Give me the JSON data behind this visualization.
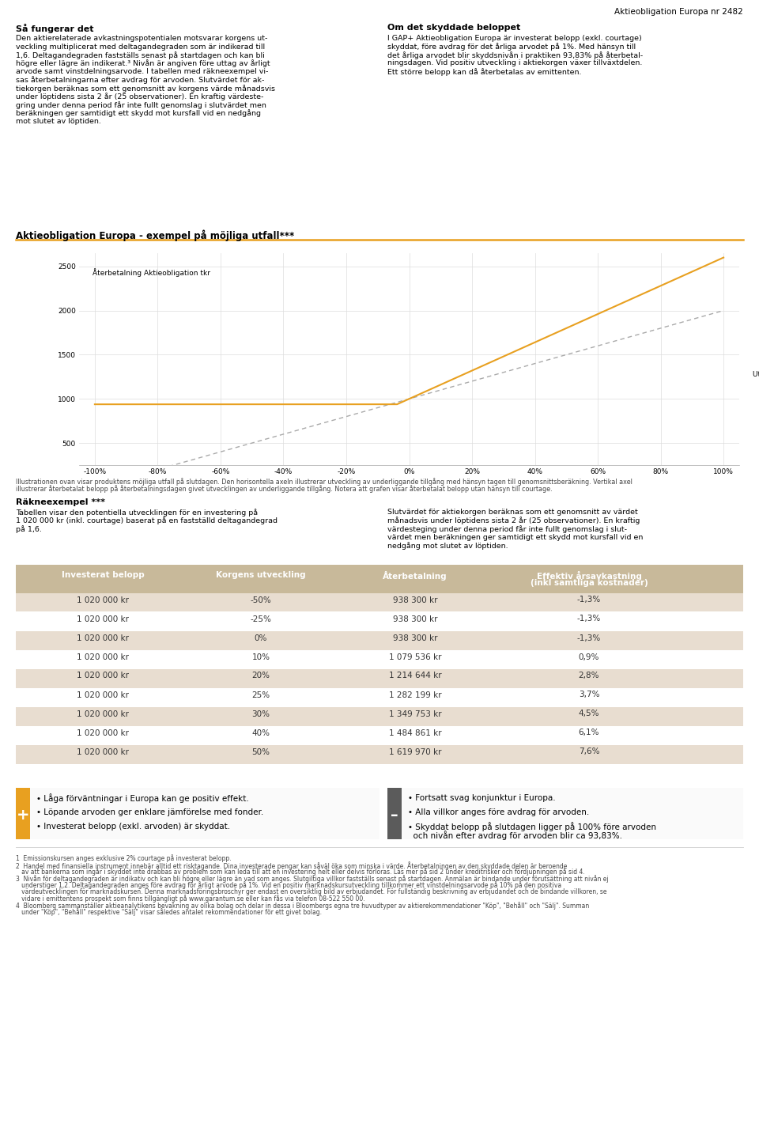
{
  "title_top_right": "Aktieobligation Europa nr 2482",
  "section1_title": "Så fungerar det",
  "section1_text": [
    "Den aktierelaterade avkastningspotentialen motsvarar korgens ut-",
    "veckling multiplicerat med deltagandegraden som är indikerad till",
    "1,6. Deltagandegraden fastställs senast på startdagen och kan bli",
    "högre eller lägre än indikerat.³ Nivån är angiven före uttag av årligt",
    "arvode samt vinstdelningsarvode. I tabellen med räkneexempel vi-",
    "sas återbetalningarna efter avdrag för arvoden. Slutvärdet för ak-",
    "tiekorgen beräknas som ett genomsnitt av korgens värde månadsvis",
    "under löptidens sista 2 år (25 observationer). En kraftig värdeste-",
    "gring under denna period får inte fullt genomslag i slutvärdet men",
    "beräkningen ger samtidigt ett skydd mot kursfall vid en nedgång",
    "mot slutet av löptiden."
  ],
  "section2_title": "Om det skyddade beloppet",
  "section2_text": [
    "I GAP+ Aktieobligation Europa är investerat belopp (exkl. courtage)",
    "skyddat, före avdrag för det årliga arvodet på 1%. Med hänsyn till",
    "det årliga arvodet blir skyddsnivån i praktiken 93,83% på återbetal-",
    "ningsdagen. Vid positiv utveckling i aktiekorgen växer tillväxtdelen.",
    "Ett större belopp kan då återbetalas av emittenten."
  ],
  "chart_title": "Aktieobligation Europa - exempel på möjliga utfall***",
  "chart_ylabel": "Återbetalning Aktieobligation tkr",
  "chart_xlabel_label": "Utveckling underliggande tillgång",
  "chart_yticks": [
    500,
    1000,
    1500,
    2000,
    2500
  ],
  "chart_xticks": [
    -1.0,
    -0.8,
    -0.6,
    -0.4,
    -0.2,
    0.0,
    0.2,
    0.4,
    0.6,
    0.8,
    1.0
  ],
  "chart_xtick_labels": [
    "-100%",
    "-80%",
    "-60%",
    "-40%",
    "-20%",
    "0%",
    "20%",
    "40%",
    "60%",
    "80%",
    "100%"
  ],
  "chart_line_orange_color": "#E8A020",
  "chart_line_dashed_color": "#AAAAAA",
  "chart_bg_color": "#FFFFFF",
  "chart_grid_color": "#DDDDDD",
  "illustration_text1": "Illustrationen ovan visar produktens möjliga utfall på slutdagen. Den horisontella axeln illustrerar utveckling av underliggande tillgång med hänsyn tagen till genomsnittsberäkning. Vertikal axel",
  "illustration_text2": "illustrerar återbetalat belopp på återbetalningsdagen givet utvecklingen av underliggande tillgång. Notera att grafen visar återbetalat belopp utan hänsyn till courtage.",
  "rakneexempel_title": "Räkneexempel ***",
  "rakneexempel_text1": [
    "Tabellen visar den potentiella utvecklingen för en investering på",
    "1 020 000 kr (inkl. courtage) baserat på en fastställd deltagandegrad",
    "på 1,6."
  ],
  "rakneexempel_text2": [
    "Slutvärdet för aktiekorgen beräknas som ett genomsnitt av värdet",
    "månadsvis under löptidens sista 2 år (25 observationer). En kraftig",
    "värdesteging under denna period får inte fullt genomslag i slut-",
    "värdet men beräkningen ger samtidigt ett skydd mot kursfall vid en",
    "nedgång mot slutet av löptiden."
  ],
  "table_header_color": "#C8B99A",
  "table_header_text_color": "#FFFFFF",
  "table_row_color_odd": "#E8DDD0",
  "table_row_color_even": "#FFFFFF",
  "table_headers": [
    "Investerat belopp",
    "Korgens utveckling",
    "Återbetalning",
    "Effektiv årsavkastning\n(inkl samtliga kostnader)"
  ],
  "table_data": [
    [
      "1 020 000 kr",
      "-50%",
      "938 300 kr",
      "-1,3%"
    ],
    [
      "1 020 000 kr",
      "-25%",
      "938 300 kr",
      "-1,3%"
    ],
    [
      "1 020 000 kr",
      "0%",
      "938 300 kr",
      "-1,3%"
    ],
    [
      "1 020 000 kr",
      "10%",
      "1 079 536 kr",
      "0,9%"
    ],
    [
      "1 020 000 kr",
      "20%",
      "1 214 644 kr",
      "2,8%"
    ],
    [
      "1 020 000 kr",
      "25%",
      "1 282 199 kr",
      "3,7%"
    ],
    [
      "1 020 000 kr",
      "30%",
      "1 349 753 kr",
      "4,5%"
    ],
    [
      "1 020 000 kr",
      "40%",
      "1 484 861 kr",
      "6,1%"
    ],
    [
      "1 020 000 kr",
      "50%",
      "1 619 970 kr",
      "7,6%"
    ]
  ],
  "plus_section_color": "#E8A020",
  "plus_items": [
    "Låga förväntningar i Europa kan ge positiv effekt.",
    "Löpande arvoden ger enklare jämförelse med fonder.",
    "Investerat belopp (exkl. arvoden) är skyddat."
  ],
  "minus_section_color": "#5B5B5B",
  "minus_items": [
    "Fortsatt svag konjunktur i Europa.",
    "Alla villkor anges före avdrag för arvoden.",
    [
      "Skyddat belopp på slutdagen ligger på 100% före arvoden",
      "och nivån efter avdrag för arvoden blir ca 93,83%."
    ]
  ],
  "footnote1": "1  Emissionskursen anges exklusive 2% courtage på investerat belopp.",
  "footnote2a": "2  Handel med finansiella instrument innebär alltid ett risktagande. Dina investerade pengar kan såväl öka som minska i värde. Återbetalningen av den skyddade delen är beroende",
  "footnote2b": "   av att bankerna som ingår i skyddet inte drabbas av problem som kan leda till att en investering helt eller delvis förloras. Läs mer på sid 2 under kreditrisker och fördjupningen på sid 4.",
  "footnote3a": "3  Nivån för deltagandegraden är indikativ och kan bli högre eller lägre än vad som anges. Slutgiltiga villkor fastställs senast på startdagen. Anmälan är bindande under förutsättning att nivån ej",
  "footnote3b": "   understiger 1,2. Deltagandegraden anges före avdrag för årligt arvode på 1%. Vid en positiv marknadskursutveckling tillkommer ett vinstdelningsarvode på 10% på den positiva",
  "footnote3c": "   värdeutvecklingen för marknadskursen. Denna marknadsföringsbroschyr ger endast en översiktlig bild av erbjudandet. För fullständig beskrivning av erbjudandet och de bindande villkoren, se",
  "footnote3d": "   vidare i emittentens prospekt som finns tillgängligt på www.garantum.se eller kan fås via telefon 08-522 550 00.",
  "footnote4a": "4  Bloomberg sammanställer aktieanalytikens bevakning av olika bolag och delar in dessa i Bloombergs egna tre huvudtyper av aktierekommendationer \"Köp\", \"Behåll\" och \"Sälj\". Summan",
  "footnote4b": "   under \"Köp\", \"Behåll\" respektive \"Sälj\" visar således antalet rekommendationer för ett givet bolag.",
  "background_color": "#FFFFFF",
  "orange_color": "#E8A020"
}
